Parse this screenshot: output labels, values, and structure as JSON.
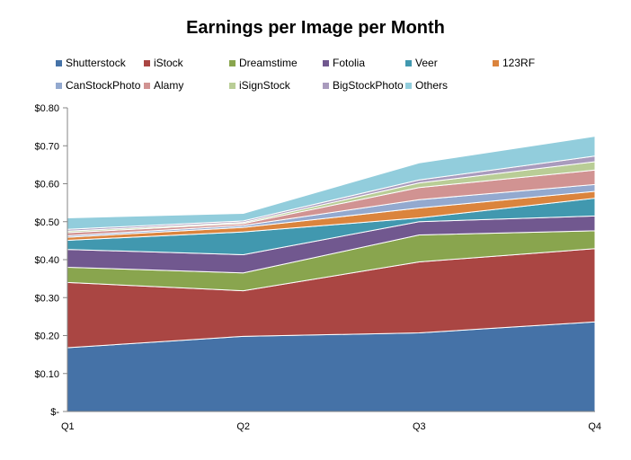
{
  "chart_data": {
    "type": "area",
    "stacked": true,
    "title": "Earnings per Image per Month",
    "xlabel": "",
    "ylabel": "",
    "categories": [
      "Q1",
      "Q2",
      "Q3",
      "Q4"
    ],
    "ylim": [
      0,
      0.8
    ],
    "yticks": [
      0,
      0.1,
      0.2,
      0.3,
      0.4,
      0.5,
      0.6,
      0.7,
      0.8
    ],
    "ytick_labels": [
      "$-",
      "$0.10",
      "$0.20",
      "$0.30",
      "$0.40",
      "$0.50",
      "$0.60",
      "$0.70",
      "$0.80"
    ],
    "legend_position": "top",
    "grid": false,
    "series": [
      {
        "name": "Shutterstock",
        "color": "#4572A7",
        "values": [
          0.168,
          0.198,
          0.207,
          0.236
        ]
      },
      {
        "name": "iStock",
        "color": "#AA4643",
        "values": [
          0.172,
          0.12,
          0.187,
          0.193
        ]
      },
      {
        "name": "Dreamstime",
        "color": "#89A54E",
        "values": [
          0.04,
          0.047,
          0.071,
          0.047
        ]
      },
      {
        "name": "Fotolia",
        "color": "#71588F",
        "values": [
          0.047,
          0.048,
          0.035,
          0.039
        ]
      },
      {
        "name": "Veer",
        "color": "#4198AF",
        "values": [
          0.024,
          0.06,
          0.01,
          0.047
        ]
      },
      {
        "name": "123RF",
        "color": "#DB843D",
        "values": [
          0.008,
          0.012,
          0.026,
          0.018
        ]
      },
      {
        "name": "CanStockPhoto",
        "color": "#93A9CF",
        "values": [
          0.004,
          0.005,
          0.022,
          0.018
        ]
      },
      {
        "name": "Alamy",
        "color": "#D19392",
        "values": [
          0.008,
          0.005,
          0.032,
          0.038
        ]
      },
      {
        "name": "iSignStock",
        "color": "#B9CD96",
        "values": [
          0.004,
          0.003,
          0.012,
          0.022
        ]
      },
      {
        "name": "BigStockPhoto",
        "color": "#A99BBD",
        "values": [
          0.005,
          0.004,
          0.008,
          0.015
        ]
      },
      {
        "name": "Others",
        "color": "#92CDDC",
        "values": [
          0.03,
          0.02,
          0.045,
          0.052
        ]
      }
    ]
  }
}
